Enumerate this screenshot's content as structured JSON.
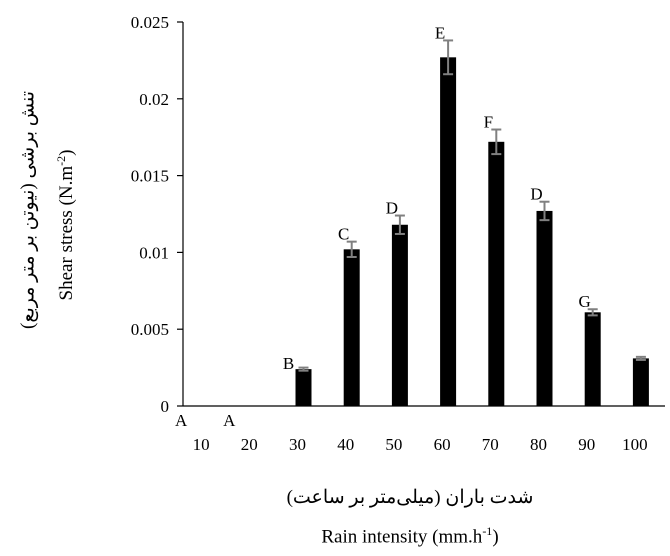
{
  "chart_data": {
    "type": "bar",
    "categories": [
      "10",
      "20",
      "30",
      "40",
      "50",
      "60",
      "70",
      "80",
      "90",
      "100"
    ],
    "values": [
      0,
      0,
      0.0024,
      0.0102,
      0.0118,
      0.0227,
      0.0172,
      0.0127,
      0.0061,
      0.0031
    ],
    "errors": [
      0,
      0,
      0.0001,
      0.0005,
      0.0006,
      0.0011,
      0.0008,
      0.0006,
      0.0002,
      0.0001
    ],
    "letters": [
      "A",
      "A",
      "B",
      "C",
      "D",
      "E",
      "F",
      "D",
      "G",
      ""
    ],
    "ylim": [
      0,
      0.025
    ],
    "y_ticks": [
      "0",
      "0.005",
      "0.01",
      "0.015",
      "0.02",
      "0.025"
    ],
    "y_tick_values": [
      0,
      0.005,
      0.01,
      0.015,
      0.02,
      0.025
    ],
    "xlabel_fa": "شدت باران (میلی‌متر بر ساعت)",
    "xlabel_en": "Rain intensity (mm.h",
    "xlabel_en_sup": "-1",
    "xlabel_en_end": ")",
    "ylabel_fa": "تنش برشی (نیوتن بر متر مربع)",
    "ylabel_en": "Shear stress (N.m",
    "ylabel_en_sup": "-2",
    "ylabel_en_end": ")",
    "grid": false,
    "colors": {
      "bar": "#000000",
      "error": "#808080"
    }
  }
}
